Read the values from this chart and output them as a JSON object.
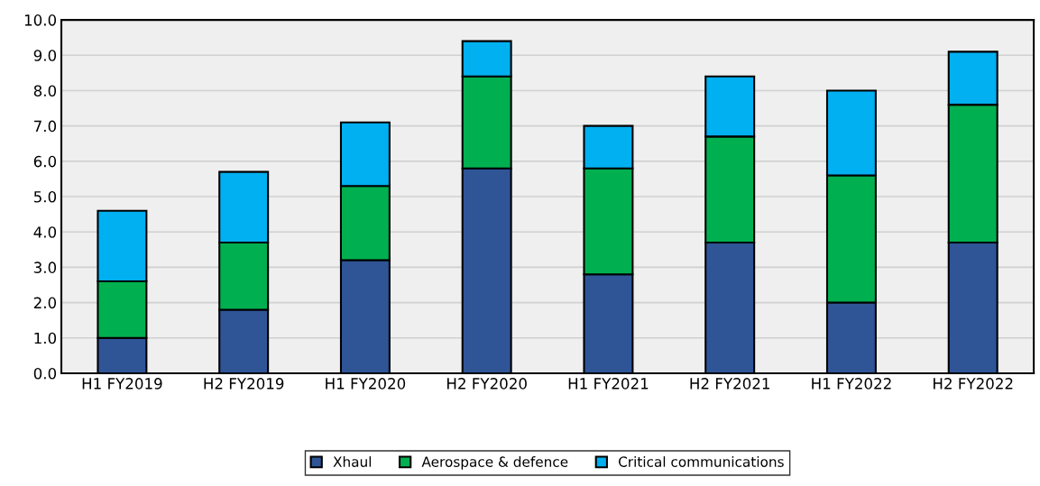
{
  "chart_data": {
    "type": "bar",
    "stacked": true,
    "categories": [
      "H1 FY2019",
      "H2 FY2019",
      "H1 FY2020",
      "H2 FY2020",
      "H1 FY2021",
      "H2 FY2021",
      "H1 FY2022",
      "H2 FY2022"
    ],
    "series": [
      {
        "name": "Xhaul",
        "color": "#2f5597",
        "values": [
          1.0,
          1.8,
          3.2,
          5.8,
          2.8,
          3.7,
          2.0,
          3.7
        ]
      },
      {
        "name": "Aerospace & defence",
        "color": "#00b050",
        "values": [
          1.6,
          1.9,
          2.1,
          2.6,
          3.0,
          3.0,
          3.6,
          3.9
        ]
      },
      {
        "name": "Critical communications",
        "color": "#00b0f0",
        "values": [
          2.0,
          2.0,
          1.8,
          1.0,
          1.2,
          1.7,
          2.4,
          1.5
        ]
      }
    ],
    "ylim": [
      0,
      10
    ],
    "yticks": [
      {
        "value": 0,
        "label": "0.0"
      },
      {
        "value": 1,
        "label": "1.0"
      },
      {
        "value": 2,
        "label": "2.0"
      },
      {
        "value": 3,
        "label": "3.0"
      },
      {
        "value": 4,
        "label": "4.0"
      },
      {
        "value": 5,
        "label": "5.0"
      },
      {
        "value": 6,
        "label": "6.0"
      },
      {
        "value": 7,
        "label": "7.0"
      },
      {
        "value": 8,
        "label": "8.0"
      },
      {
        "value": 9,
        "label": "9.0"
      },
      {
        "value": 10,
        "label": "10.0"
      }
    ],
    "grid": "y",
    "legend": "bottom"
  }
}
